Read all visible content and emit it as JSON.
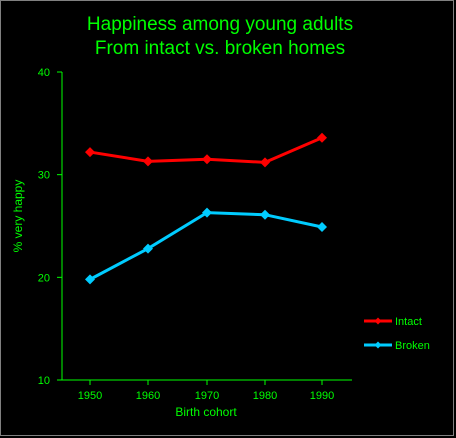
{
  "chart_data": {
    "type": "line",
    "title_line1": "Happiness among young adults",
    "title_line2": "From intact vs. broken homes",
    "xlabel": "Birth cohort",
    "ylabel": "% very happy",
    "categories": [
      "1950",
      "1960",
      "1970",
      "1980",
      "1990"
    ],
    "ylim": [
      10,
      40
    ],
    "yticks": [
      "10",
      "20",
      "30",
      "40"
    ],
    "grid": false,
    "legend_position": "right",
    "series": [
      {
        "name": "Intact",
        "color": "#ff0000",
        "values": [
          32.2,
          31.3,
          31.5,
          31.2,
          33.6
        ]
      },
      {
        "name": "Broken",
        "color": "#00ccff",
        "values": [
          19.8,
          22.8,
          26.3,
          26.1,
          24.9
        ]
      }
    ],
    "colors": {
      "background": "#000000",
      "text": "#00ff00",
      "axis": "#00ff00"
    }
  }
}
